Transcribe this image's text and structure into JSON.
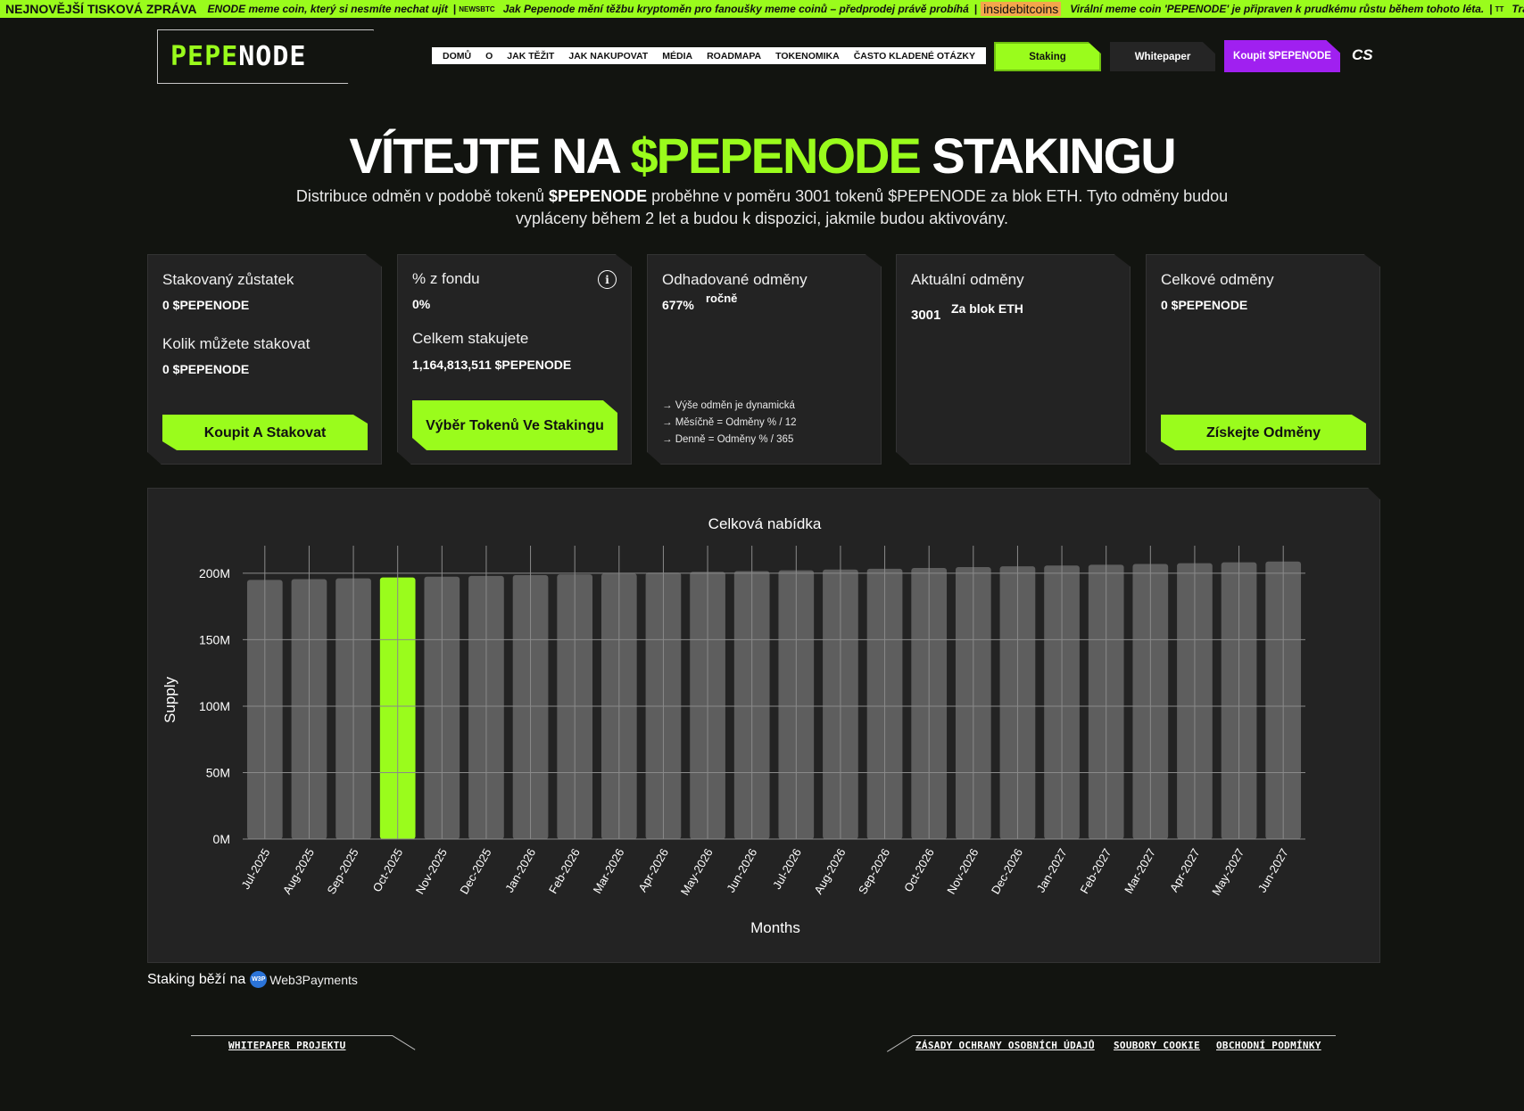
{
  "ticker": {
    "lead": "NEJNOVĚJŠÍ TISKOVÁ ZPRÁVA",
    "items": [
      "ENODE meme coin, který si nesmíte nechat ujít",
      "Jak Pepenode mění těžbu kryptoměn pro fanoušky meme coinů – předprodej právě probíhá",
      "Virální meme coin 'PEPENODE' je připraven k prudkému růstu během tohoto léta.",
      "Tra"
    ],
    "sources": [
      "NEWSBTC",
      "inside",
      "bitcoins",
      "TT"
    ]
  },
  "logo": {
    "pepe": "PEPE",
    "node": "NODE"
  },
  "nav": [
    "DOMŮ",
    "O",
    "JAK TĚŽIT",
    "JAK NAKUPOVAT",
    "MÉDIA",
    "ROADMAPA",
    "TOKENOMIKA",
    "ČASTO KLADENÉ OTÁZKY"
  ],
  "header_buttons": {
    "staking": "Staking",
    "whitepaper": "Whitepaper",
    "buy": "Koupit $PEPENODE",
    "lang": "CS"
  },
  "hero": {
    "title_a": "VÍTEJTE NA ",
    "title_green": "$PEPENODE",
    "title_b": " STAKINGU",
    "sub_a": "Distribuce odměn v podobě tokenů ",
    "sub_bold": "$PEPENODE",
    "sub_b": " proběhne v poměru 3001 tokenů $PEPENODE za blok ETH. Tyto odměny budou vypláceny během 2 let a budou k dispozici, jakmile budou aktivovány."
  },
  "cards": {
    "c1": {
      "label1": "Stakovaný zůstatek",
      "value1": "0 $PEPENODE",
      "label2": "Kolik můžete stakovat",
      "value2": "0 $PEPENODE",
      "button": "Koupit A Stakovat"
    },
    "c2": {
      "label1": "% z fondu",
      "value1": "0%",
      "label2": "Celkem stakujete",
      "value2": "1,164,813,511 $PEPENODE",
      "button": "Výběr Tokenů Ve Stakingu"
    },
    "c3": {
      "label1": "Odhadované odměny",
      "value1": "677%",
      "suffix": "ročně",
      "notes": [
        "→ Výše odměn je dynamická",
        "→ Měsíčně = Odměny % / 12",
        "→ Denně = Odměny % / 365"
      ]
    },
    "c4": {
      "label1": "Aktuální odměny",
      "value1": "3001",
      "suffix": "Za blok ETH"
    },
    "c5": {
      "label1": "Celkové odměny",
      "value1": "0 $PEPENODE",
      "button": "Získejte Odměny"
    }
  },
  "chart_data": {
    "type": "bar",
    "title": "Celková nabídka",
    "xlabel": "Months",
    "ylabel": "Supply",
    "categories": [
      "Jul-2025",
      "Aug-2025",
      "Sep-2025",
      "Oct-2025",
      "Nov-2025",
      "Dec-2025",
      "Jan-2026",
      "Feb-2026",
      "Mar-2026",
      "Apr-2026",
      "May-2026",
      "Jun-2026",
      "Jul-2026",
      "Aug-2026",
      "Sep-2026",
      "Oct-2026",
      "Nov-2026",
      "Dec-2026",
      "Jan-2027",
      "Feb-2027",
      "Mar-2027",
      "Apr-2027",
      "May-2027",
      "Jun-2027"
    ],
    "values": [
      195.0,
      195.6,
      196.2,
      196.8,
      197.4,
      198.0,
      198.6,
      199.2,
      199.8,
      200.4,
      201.0,
      201.6,
      202.2,
      202.8,
      203.4,
      204.0,
      204.6,
      205.2,
      205.8,
      206.4,
      207.0,
      207.6,
      208.2,
      208.8
    ],
    "highlight": "Oct-2025",
    "unit": "M",
    "yticks": [
      "0M",
      "50M",
      "100M",
      "150M",
      "200M"
    ],
    "ylim": [
      0,
      210
    ],
    "grid": true,
    "colors": {
      "bar": "#5e5e5e",
      "highlight": "#9afc1c",
      "grid": "#8a8a8a"
    }
  },
  "powered": {
    "text": "Staking běží na",
    "icon": "W3P",
    "brand": "Web3Payments"
  },
  "footer": {
    "whitepaper": "WHITEPAPER PROJEKTU",
    "privacy": "ZÁSADY OCHRANY OSOBNÍCH ÚDAJŮ",
    "cookies": "SOUBORY COOKIE",
    "terms": "OBCHODNÍ PODMÍNKY"
  },
  "colors": {
    "accent": "#9afc1c",
    "purple": "#a020f0",
    "bg": "#121410",
    "card": "#232323"
  }
}
